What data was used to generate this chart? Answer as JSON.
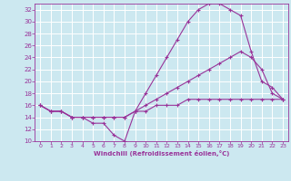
{
  "title": "",
  "xlabel": "Windchill (Refroidissement éolien,°C)",
  "bg_color": "#cce8f0",
  "line_color": "#993399",
  "grid_color": "#ffffff",
  "xlim": [
    -0.5,
    23.5
  ],
  "ylim": [
    10,
    33
  ],
  "yticks": [
    10,
    12,
    14,
    16,
    18,
    20,
    22,
    24,
    26,
    28,
    30,
    32
  ],
  "xticks": [
    0,
    1,
    2,
    3,
    4,
    5,
    6,
    7,
    8,
    9,
    10,
    11,
    12,
    13,
    14,
    15,
    16,
    17,
    18,
    19,
    20,
    21,
    22,
    23
  ],
  "series": [
    {
      "x": [
        0,
        1,
        2,
        3,
        4,
        5,
        6,
        7,
        8,
        9,
        10,
        11,
        12,
        13,
        14,
        15,
        16,
        17,
        18,
        19,
        20,
        21,
        22,
        23
      ],
      "y": [
        16,
        15,
        15,
        14,
        14,
        13,
        13,
        11,
        10,
        15,
        18,
        21,
        24,
        27,
        30,
        32,
        33,
        33,
        32,
        31,
        25,
        20,
        19,
        17
      ]
    },
    {
      "x": [
        0,
        1,
        2,
        3,
        4,
        5,
        6,
        7,
        8,
        9,
        10,
        11,
        12,
        13,
        14,
        15,
        16,
        17,
        18,
        19,
        20,
        21,
        22,
        23
      ],
      "y": [
        16,
        15,
        15,
        14,
        14,
        14,
        14,
        14,
        14,
        15,
        16,
        17,
        18,
        19,
        20,
        21,
        22,
        23,
        24,
        25,
        24,
        22,
        18,
        17
      ]
    },
    {
      "x": [
        0,
        1,
        2,
        3,
        4,
        5,
        6,
        7,
        8,
        9,
        10,
        11,
        12,
        13,
        14,
        15,
        16,
        17,
        18,
        19,
        20,
        21,
        22,
        23
      ],
      "y": [
        16,
        15,
        15,
        14,
        14,
        14,
        14,
        14,
        14,
        15,
        15,
        16,
        16,
        16,
        17,
        17,
        17,
        17,
        17,
        17,
        17,
        17,
        17,
        17
      ]
    }
  ]
}
